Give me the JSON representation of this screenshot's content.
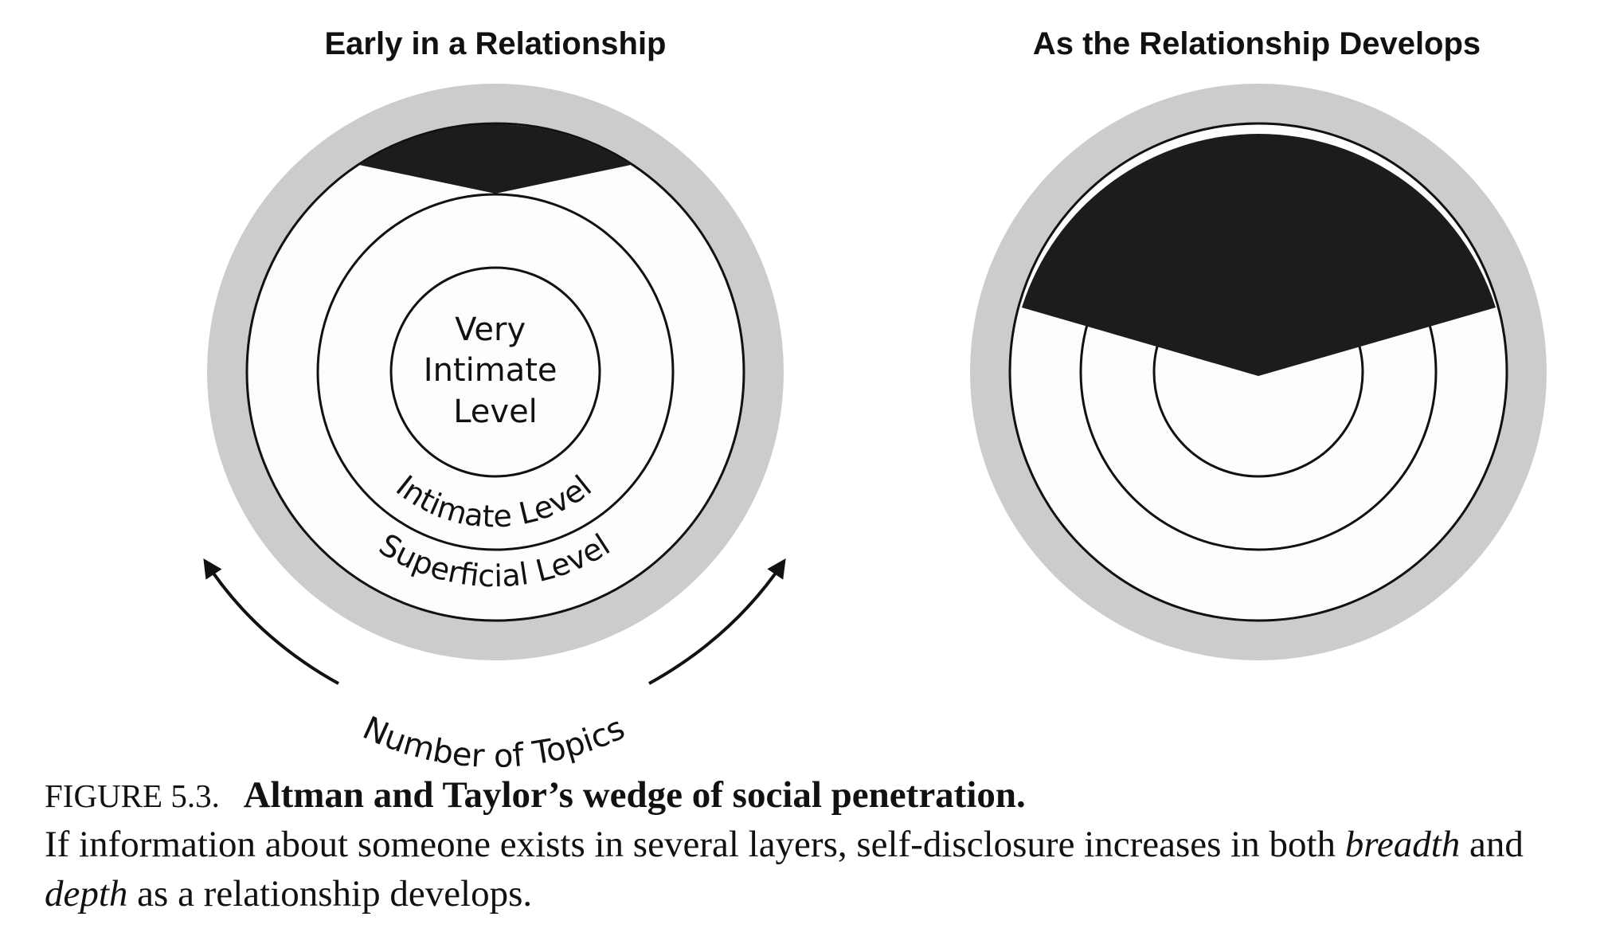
{
  "panels": {
    "early": {
      "title": "Early in a Relationship",
      "center_label": [
        "Very",
        "Intimate",
        "Level"
      ],
      "intimate_label": "Intimate Level",
      "superficial_label": "Superficial Level",
      "topics_label": "Number of Topics"
    },
    "develops": {
      "title": "As the Relationship Develops"
    }
  },
  "caption": {
    "figure_number": "FIGURE 5.3.",
    "figure_title": "Altman and Taylor’s wedge of social penetration.",
    "text_before_breadth": "If information about someone exists in several layers, self-disclosure increases in both ",
    "breadth": "breadth",
    "text_between": " and ",
    "depth": "depth",
    "text_after": " as a relationship develops."
  },
  "colors": {
    "outer_ring": "#cccccc",
    "wedge": "#1c1c1c",
    "ring_fill": "#fdfdfb",
    "line": "#111111"
  }
}
